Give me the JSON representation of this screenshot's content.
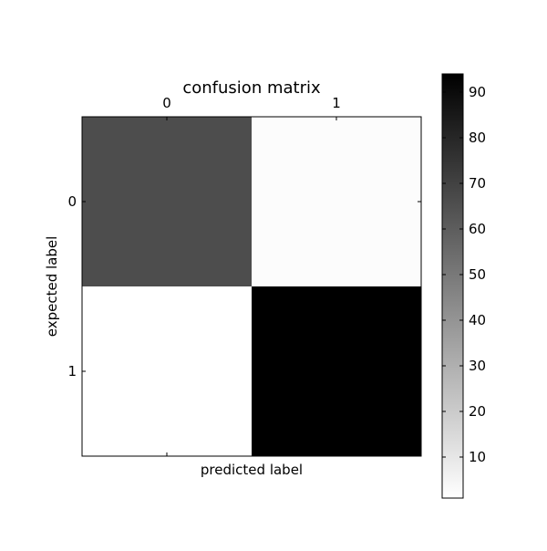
{
  "chart_data": {
    "type": "heatmap",
    "title": "confusion matrix",
    "xlabel": "predicted label",
    "ylabel": "expected label",
    "x_categories": [
      "0",
      "1"
    ],
    "y_categories": [
      "0",
      "1"
    ],
    "values": [
      [
        66,
        2
      ],
      [
        1,
        94
      ]
    ],
    "colormap": "gray_r",
    "colorbar": {
      "min": 1,
      "max": 94,
      "ticks": [
        10,
        20,
        30,
        40,
        50,
        60,
        70,
        80,
        90
      ]
    },
    "x_ticks_position": "top",
    "grid": false
  }
}
